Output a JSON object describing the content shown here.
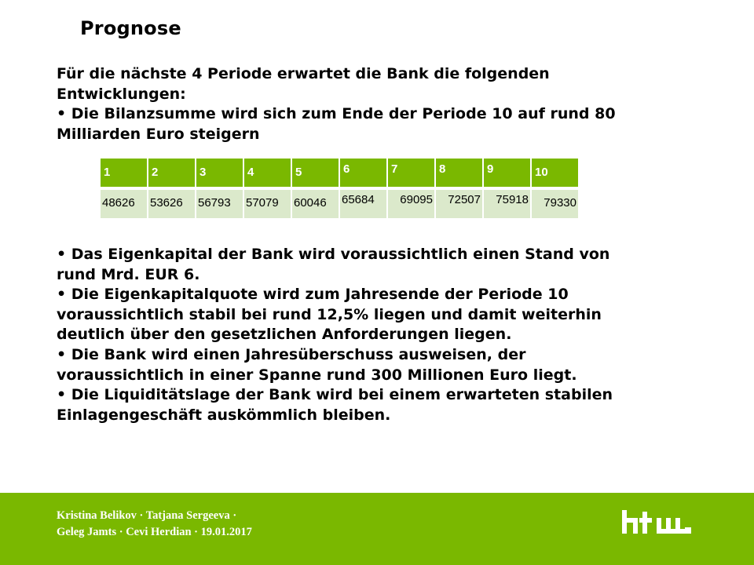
{
  "slide": {
    "title": "Prognose",
    "intro_lines": [
      "Für die nächste 4 Periode erwartet die Bank die folgenden",
      "Entwicklungen:",
      " • Die Bilanzsumme wird sich zum Ende der Periode 10 auf rund 80",
      "Milliarden Euro steigern"
    ],
    "bullet_lines": [
      "• Das Eigenkapital der Bank wird voraussichtlich einen Stand von",
      "rund Mrd. EUR 6.",
      "• Die Eigenkapitalquote wird zum Jahresende der Periode 10",
      "voraussichtlich stabil bei rund 12,5% liegen und damit weiterhin",
      "deutlich über den gesetzlichen Anforderungen liegen.",
      "• Die Bank wird einen Jahresüberschuss ausweisen, der",
      "voraussichtlich in einer Spanne rund 300 Millionen Euro liegt.",
      " • Die Liquiditätslage der Bank wird bei einem erwarteten stabilen",
      "Einlagengeschäft auskömmlich bleiben."
    ]
  },
  "table": {
    "periods": [
      "1",
      "2",
      "3",
      "4",
      "5",
      "6",
      "7",
      "8",
      "9",
      "10"
    ],
    "values": [
      "48626",
      "53626",
      "56793",
      "57079",
      "60046",
      "65684",
      "69095",
      "72507",
      "75918",
      "79330"
    ]
  },
  "footer": {
    "authors_line1": "Kristina  Belikov  · Tatjana Sergeeva ·",
    "authors_line2": "Geleg Jamts · Cevi Herdian · 19.01.2017",
    "logo_text": "htw"
  },
  "colors": {
    "accent_green": "#7ab800",
    "table_light_green": "#dbe9cb"
  }
}
